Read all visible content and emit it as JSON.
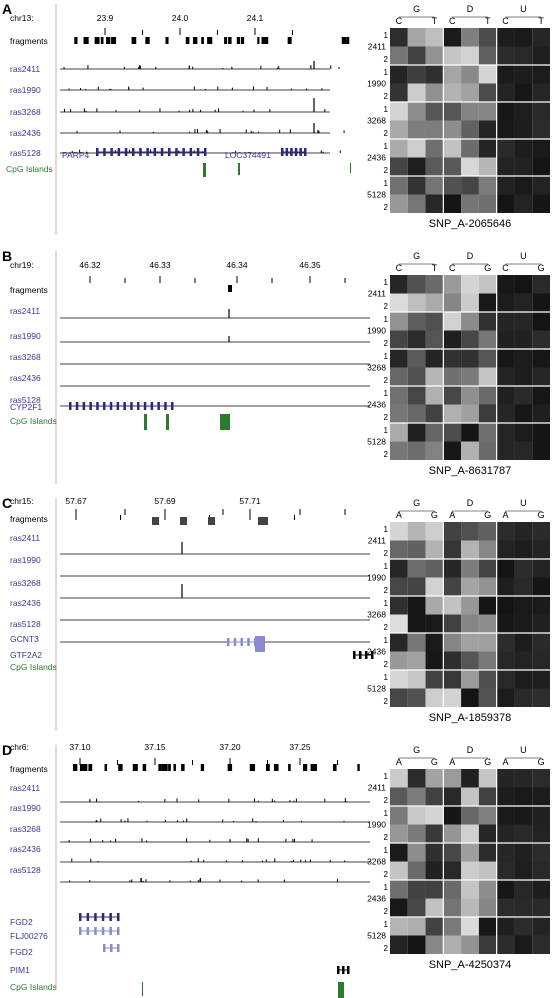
{
  "panels": [
    {
      "letter": "A",
      "chrom": "chr13:",
      "ticks": [
        "23.9",
        "24.0",
        "24.1"
      ],
      "track_labels": [
        "fragments",
        "ras2411",
        "ras1990",
        "ras3268",
        "ras2436",
        "ras5128"
      ],
      "genes": [
        "PARP4",
        "LOC374491"
      ],
      "cpg_label": "CpG Islands",
      "samples": [
        "2411",
        "1990",
        "3268",
        "2436",
        "5128"
      ],
      "alleles": [
        "1",
        "2"
      ],
      "heat_cols": [
        "C",
        "G",
        "T",
        "C",
        "D",
        "T",
        "C",
        "U",
        "T"
      ],
      "snp": "SNP_A-2065646"
    },
    {
      "letter": "B",
      "chrom": "chr19:",
      "ticks": [
        "46.32",
        "46.33",
        "46.34",
        "46.35"
      ],
      "track_labels": [
        "fragments",
        "ras2411",
        "ras1990",
        "ras3268",
        "ras2436",
        "ras5128"
      ],
      "genes": [
        "CYP2F1"
      ],
      "cpg_label": "CpG Islands",
      "samples": [
        "2411",
        "1990",
        "3268",
        "2436",
        "5128"
      ],
      "alleles": [
        "1",
        "2"
      ],
      "heat_cols": [
        "C",
        "G",
        "T",
        "C",
        "D",
        "G",
        "C",
        "U",
        "G"
      ],
      "snp": "SNP_A-8631787"
    },
    {
      "letter": "C",
      "chrom": "chr15:",
      "ticks": [
        "57.67",
        "57.69",
        "57.71"
      ],
      "track_labels": [
        "fragments",
        "ras2411",
        "ras1990",
        "ras3268",
        "ras2436",
        "ras5128"
      ],
      "genes": [
        "GCNT3",
        "GTF2A2"
      ],
      "cpg_label": "CpG Islands",
      "samples": [
        "2411",
        "1990",
        "3268",
        "2436",
        "5128"
      ],
      "alleles": [
        "1",
        "2"
      ],
      "heat_cols": [
        "A",
        "G",
        "G",
        "A",
        "D",
        "G",
        "A",
        "U",
        "G"
      ],
      "snp": "SNP_A-1859378"
    },
    {
      "letter": "D",
      "chrom": "chr6:",
      "ticks": [
        "37.10",
        "37.15",
        "37.20",
        "37.25"
      ],
      "track_labels": [
        "fragments",
        "ras2411",
        "ras1990",
        "ras3268",
        "ras2436",
        "ras5128"
      ],
      "genes": [
        "FGD2",
        "FLJ00276",
        "FGD2",
        "PIM1"
      ],
      "cpg_label": "CpG Islands",
      "samples": [
        "2411",
        "1990",
        "3268",
        "2436",
        "5128"
      ],
      "alleles": [
        "1",
        "2"
      ],
      "heat_cols": [
        "A",
        "G",
        "G",
        "A",
        "D",
        "G",
        "A",
        "U",
        "G"
      ],
      "snp": "SNP_A-4250374"
    }
  ],
  "colors": {
    "track_label": "#3a3a8c",
    "cpg": "#2d7a2d",
    "gene": "#2a2a7a",
    "gene_light": "#8a8ad0"
  }
}
